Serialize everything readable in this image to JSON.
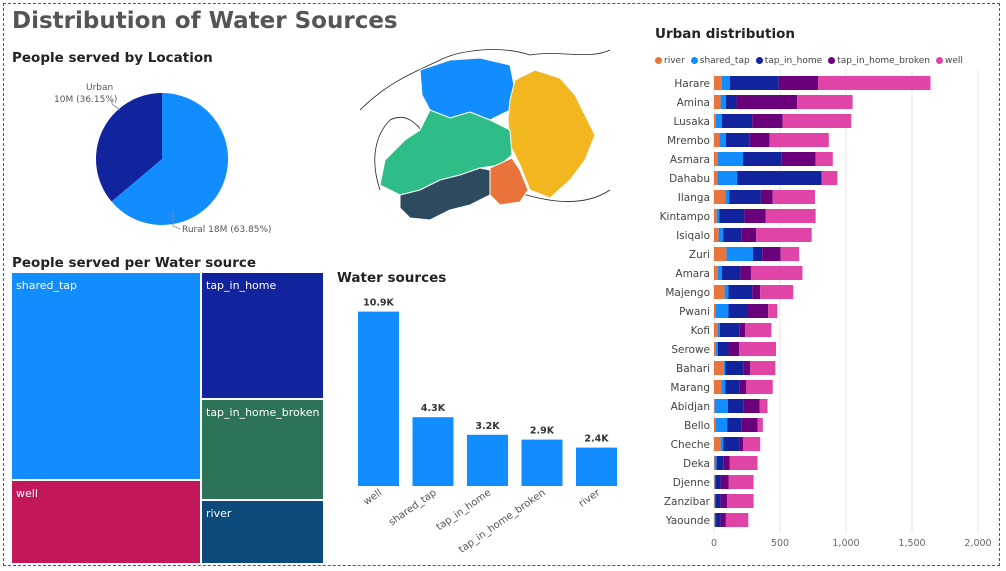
{
  "title": "Distribution of Water Sources",
  "colors": {
    "river": "#E8743B",
    "shared_tap": "#118DFF",
    "tap_in_home": "#12239E",
    "tap_in_home_broken": "#6B007B",
    "well": "#E044A7",
    "treemap_tap_in_home_broken": "#2D7356",
    "treemap_well": "#C2185B",
    "treemap_river": "#0B4A7A"
  },
  "chart_data": [
    {
      "type": "pie",
      "title": "People served by Location",
      "slices": [
        {
          "label": "Urban",
          "value": 10,
          "pct": 36.15,
          "text_name": "Urban",
          "text_value": "10M (36.15%)",
          "color": "#12239E"
        },
        {
          "label": "Rural",
          "value": 18,
          "pct": 63.85,
          "text": "Rural 18M (63.85%)",
          "color": "#118DFF"
        }
      ]
    },
    {
      "type": "treemap",
      "title": "People served per Water source",
      "items": [
        {
          "label": "shared_tap",
          "color": "#118DFF"
        },
        {
          "label": "tap_in_home",
          "color": "#12239E"
        },
        {
          "label": "tap_in_home_broken",
          "color": "#2D7356"
        },
        {
          "label": "well",
          "color": "#C2185B"
        },
        {
          "label": "river",
          "color": "#0B4A7A"
        }
      ]
    },
    {
      "type": "bar",
      "title": "Water sources",
      "categories": [
        "well",
        "shared_tap",
        "tap_in_home",
        "tap_in_home_broken",
        "river"
      ],
      "values": [
        10.9,
        4.3,
        3.2,
        2.9,
        2.4
      ],
      "labels": [
        "10.9K",
        "4.3K",
        "3.2K",
        "2.9K",
        "2.4K"
      ],
      "color": "#118DFF"
    },
    {
      "type": "bar",
      "orientation": "horizontal",
      "stacked": true,
      "title": "Urban distribution",
      "categories": [
        "Harare",
        "Amina",
        "Lusaka",
        "Mrembo",
        "Asmara",
        "Dahabu",
        "Ilanga",
        "Kintampo",
        "Isiqalo",
        "Zuri",
        "Amara",
        "Majengo",
        "Pwani",
        "Kofi",
        "Serowe",
        "Bahari",
        "Marang",
        "Abidjan",
        "Bello",
        "Cheche",
        "Deka",
        "Djenne",
        "Zanzibar",
        "Yaounde"
      ],
      "series": [
        {
          "name": "river",
          "color": "#E8743B",
          "values": [
            60,
            50,
            15,
            40,
            30,
            25,
            85,
            20,
            35,
            95,
            30,
            80,
            10,
            30,
            15,
            75,
            55,
            5,
            10,
            50,
            5,
            5,
            5,
            5
          ]
        },
        {
          "name": "shared_tap",
          "color": "#118DFF",
          "values": [
            60,
            40,
            45,
            50,
            190,
            150,
            30,
            20,
            35,
            200,
            30,
            30,
            100,
            15,
            15,
            10,
            30,
            100,
            90,
            20,
            15,
            5,
            5,
            5
          ]
        },
        {
          "name": "tap_in_home",
          "color": "#12239E",
          "values": [
            370,
            80,
            230,
            180,
            290,
            640,
            240,
            190,
            140,
            70,
            140,
            180,
            140,
            150,
            80,
            140,
            110,
            120,
            110,
            120,
            50,
            40,
            40,
            40
          ]
        },
        {
          "name": "tap_in_home_broken",
          "color": "#6B007B",
          "values": [
            300,
            460,
            230,
            150,
            260,
            0,
            90,
            160,
            110,
            140,
            80,
            60,
            160,
            40,
            80,
            50,
            50,
            120,
            120,
            30,
            50,
            60,
            50,
            40
          ]
        },
        {
          "name": "well",
          "color": "#E044A7",
          "values": [
            850,
            420,
            520,
            450,
            130,
            120,
            320,
            380,
            420,
            140,
            390,
            250,
            70,
            200,
            280,
            190,
            200,
            60,
            40,
            130,
            210,
            190,
            200,
            170
          ]
        }
      ],
      "xlim": [
        0,
        2000
      ],
      "xticks": [
        "0",
        "500",
        "1,000",
        "1,500",
        "2,000"
      ]
    }
  ],
  "sections": {
    "map_title": ""
  }
}
